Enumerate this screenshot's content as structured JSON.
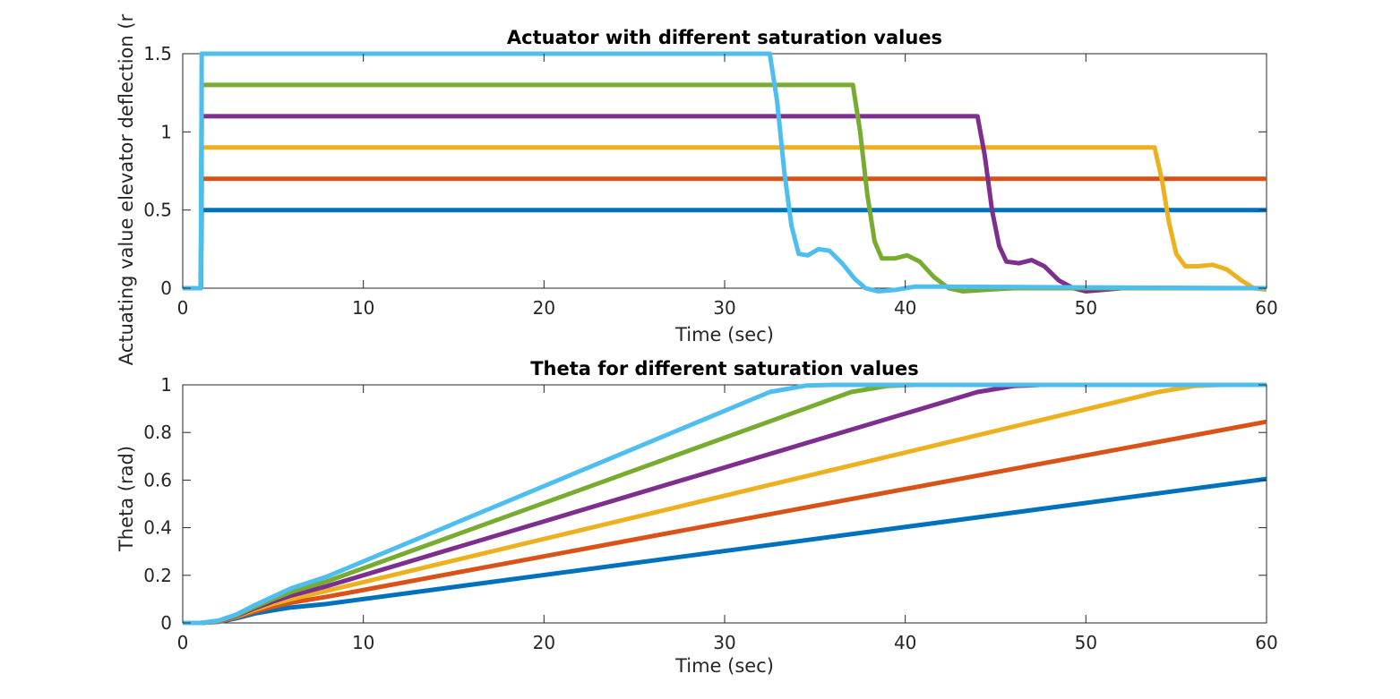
{
  "chart_data": [
    {
      "type": "line",
      "title": "Actuator with different saturation values",
      "xlabel": "Time (sec)",
      "ylabel": "Actuating value elevator deflection (r",
      "xlim": [
        0,
        60
      ],
      "ylim": [
        0,
        1.5
      ],
      "xticks": [
        "0",
        "10",
        "20",
        "30",
        "40",
        "50",
        "60"
      ],
      "yticks": [
        "0",
        "0.5",
        "1",
        "1.5"
      ],
      "grid": false,
      "series": [
        {
          "color": "#0072BD",
          "x": [
            0,
            1.0,
            1.05,
            60
          ],
          "y": [
            0,
            0,
            0.5,
            0.5
          ]
        },
        {
          "color": "#D95319",
          "x": [
            0,
            1.0,
            1.05,
            60
          ],
          "y": [
            0,
            0,
            0.7,
            0.7
          ]
        },
        {
          "color": "#EDB120",
          "x": [
            0,
            1.0,
            1.05,
            53.8,
            54.2,
            54.6,
            55.0,
            55.5,
            56.2,
            57.0,
            57.8,
            58.6,
            59.3,
            60
          ],
          "y": [
            0,
            0,
            0.9,
            0.9,
            0.7,
            0.42,
            0.22,
            0.14,
            0.14,
            0.15,
            0.12,
            0.05,
            0.0,
            -0.01
          ]
        },
        {
          "color": "#7E2F8E",
          "x": [
            0,
            1.0,
            1.05,
            44.0,
            44.4,
            44.8,
            45.2,
            45.6,
            46.3,
            47.0,
            47.7,
            48.5,
            49.3,
            50.0,
            51.0,
            52.0,
            54.0,
            60
          ],
          "y": [
            0,
            0,
            1.1,
            1.1,
            0.85,
            0.5,
            0.27,
            0.17,
            0.16,
            0.18,
            0.14,
            0.05,
            0.0,
            -0.02,
            -0.01,
            0.0,
            0.0,
            0.0
          ]
        },
        {
          "color": "#77AC30",
          "x": [
            0,
            1.0,
            1.05,
            37.1,
            37.5,
            37.9,
            38.3,
            38.7,
            39.4,
            40.1,
            40.8,
            41.6,
            42.4,
            43.2,
            44.5,
            46.0,
            60
          ],
          "y": [
            0,
            0,
            1.3,
            1.3,
            1.0,
            0.6,
            0.3,
            0.19,
            0.19,
            0.21,
            0.17,
            0.07,
            0.0,
            -0.02,
            -0.01,
            0.0,
            0.0
          ]
        },
        {
          "color": "#4DBEEE",
          "x": [
            0,
            1.0,
            1.05,
            32.5,
            32.9,
            33.3,
            33.7,
            34.1,
            34.6,
            35.2,
            35.8,
            36.5,
            37.2,
            37.8,
            38.5,
            39.5,
            40.5,
            42.0,
            60
          ],
          "y": [
            0,
            0,
            1.5,
            1.5,
            1.2,
            0.75,
            0.4,
            0.22,
            0.21,
            0.25,
            0.24,
            0.16,
            0.06,
            0.0,
            -0.02,
            -0.01,
            0.01,
            0.01,
            0.0
          ]
        }
      ]
    },
    {
      "type": "line",
      "title": "Theta for different saturation values",
      "xlabel": "Time (sec)",
      "ylabel": "Theta (rad)",
      "xlim": [
        0,
        60
      ],
      "ylim": [
        0,
        1
      ],
      "xticks": [
        "0",
        "10",
        "20",
        "30",
        "40",
        "50",
        "60"
      ],
      "yticks": [
        "0",
        "0.2",
        "0.4",
        "0.6",
        "0.8",
        "1"
      ],
      "grid": false,
      "series": [
        {
          "color": "#0072BD",
          "x": [
            0,
            1,
            2,
            3,
            4,
            5,
            6,
            8,
            60
          ],
          "y": [
            0,
            0,
            0.005,
            0.02,
            0.04,
            0.053,
            0.065,
            0.08,
            0.605
          ]
        },
        {
          "color": "#D95319",
          "x": [
            0,
            1,
            2,
            3,
            4,
            5,
            6,
            8,
            60
          ],
          "y": [
            0,
            0,
            0.006,
            0.024,
            0.048,
            0.068,
            0.085,
            0.11,
            0.845
          ]
        },
        {
          "color": "#EDB120",
          "x": [
            0,
            1,
            2,
            3,
            4,
            5,
            6,
            8,
            54,
            56,
            57.5,
            60
          ],
          "y": [
            0,
            0,
            0.007,
            0.028,
            0.056,
            0.08,
            0.1,
            0.135,
            0.97,
            0.995,
            1.0,
            1.0
          ]
        },
        {
          "color": "#7E2F8E",
          "x": [
            0,
            1,
            2,
            3,
            4,
            5,
            6,
            8,
            44,
            46,
            47.5,
            60
          ],
          "y": [
            0,
            0,
            0.008,
            0.03,
            0.062,
            0.09,
            0.115,
            0.155,
            0.97,
            0.995,
            1.0,
            1.0
          ]
        },
        {
          "color": "#77AC30",
          "x": [
            0,
            1,
            2,
            3,
            4,
            5,
            6,
            8,
            37,
            39,
            40.5,
            60
          ],
          "y": [
            0,
            0,
            0.009,
            0.033,
            0.068,
            0.1,
            0.13,
            0.175,
            0.97,
            0.995,
            1.0,
            1.0
          ]
        },
        {
          "color": "#4DBEEE",
          "x": [
            0,
            1,
            2,
            3,
            4,
            5,
            6,
            8,
            32.5,
            34.5,
            36,
            60
          ],
          "y": [
            0,
            0,
            0.01,
            0.036,
            0.075,
            0.11,
            0.145,
            0.195,
            0.97,
            0.997,
            1.0,
            1.0
          ]
        }
      ]
    }
  ]
}
